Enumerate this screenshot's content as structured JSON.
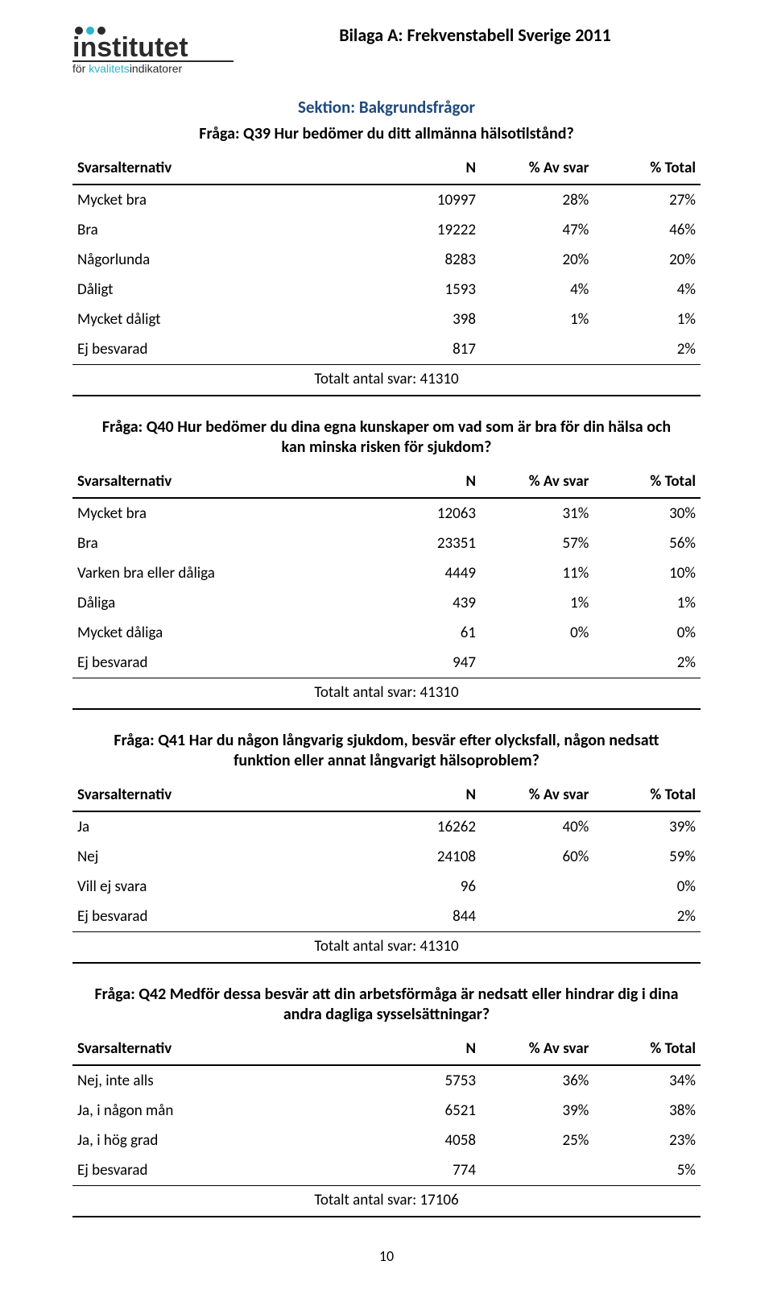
{
  "logo": {
    "title_top": "institutet",
    "title_bottom": "för kvalitetsindikatorer",
    "colors": {
      "dark": "#2b2b2b",
      "accent": "#2bb5cf",
      "rule": "#2b2b2b"
    }
  },
  "doc_title": "Bilaga A: Frekvenstabell Sverige 2011",
  "section_title": "Sektion: Bakgrundsfrågor",
  "section_title_color": "#1f497d",
  "headers": {
    "label": "Svarsalternativ",
    "n": "N",
    "av": "% Av svar",
    "total": "% Total"
  },
  "total_prefix": "Totalt antal svar:",
  "tables": [
    {
      "question": "Fråga: Q39 Hur bedömer du ditt allmänna hälsotilstånd?",
      "rows": [
        {
          "label": "Mycket bra",
          "n": "10997",
          "av": "28%",
          "total": "27%"
        },
        {
          "label": "Bra",
          "n": "19222",
          "av": "47%",
          "total": "46%"
        },
        {
          "label": "Någorlunda",
          "n": "8283",
          "av": "20%",
          "total": "20%"
        },
        {
          "label": "Dåligt",
          "n": "1593",
          "av": "4%",
          "total": "4%"
        },
        {
          "label": "Mycket dåligt",
          "n": "398",
          "av": "1%",
          "total": "1%"
        },
        {
          "label": "Ej besvarad",
          "n": "817",
          "av": "",
          "total": "2%"
        }
      ],
      "total_n": "41310"
    },
    {
      "question": "Fråga: Q40 Hur bedömer du dina egna kunskaper om vad som är bra för din hälsa och kan minska risken för sjukdom?",
      "rows": [
        {
          "label": "Mycket bra",
          "n": "12063",
          "av": "31%",
          "total": "30%"
        },
        {
          "label": "Bra",
          "n": "23351",
          "av": "57%",
          "total": "56%"
        },
        {
          "label": "Varken bra eller dåliga",
          "n": "4449",
          "av": "11%",
          "total": "10%"
        },
        {
          "label": "Dåliga",
          "n": "439",
          "av": "1%",
          "total": "1%"
        },
        {
          "label": "Mycket dåliga",
          "n": "61",
          "av": "0%",
          "total": "0%"
        },
        {
          "label": "Ej besvarad",
          "n": "947",
          "av": "",
          "total": "2%"
        }
      ],
      "total_n": "41310"
    },
    {
      "question": "Fråga: Q41 Har du någon långvarig sjukdom, besvär efter olycksfall, någon nedsatt funktion eller annat långvarigt hälsoproblem?",
      "rows": [
        {
          "label": "Ja",
          "n": "16262",
          "av": "40%",
          "total": "39%"
        },
        {
          "label": "Nej",
          "n": "24108",
          "av": "60%",
          "total": "59%"
        },
        {
          "label": "Vill ej svara",
          "n": "96",
          "av": "",
          "total": "0%"
        },
        {
          "label": "Ej besvarad",
          "n": "844",
          "av": "",
          "total": "2%"
        }
      ],
      "total_n": "41310"
    },
    {
      "question": "Fråga: Q42 Medför dessa besvär att din arbetsförmåga är nedsatt eller hindrar dig i dina andra dagliga sysselsättningar?",
      "rows": [
        {
          "label": "Nej, inte alls",
          "n": "5753",
          "av": "36%",
          "total": "34%"
        },
        {
          "label": "Ja, i någon mån",
          "n": "6521",
          "av": "39%",
          "total": "38%"
        },
        {
          "label": "Ja, i hög grad",
          "n": "4058",
          "av": "25%",
          "total": "23%"
        },
        {
          "label": "Ej besvarad",
          "n": "774",
          "av": "",
          "total": "5%"
        }
      ],
      "total_n": "17106"
    }
  ],
  "page_number": "10"
}
